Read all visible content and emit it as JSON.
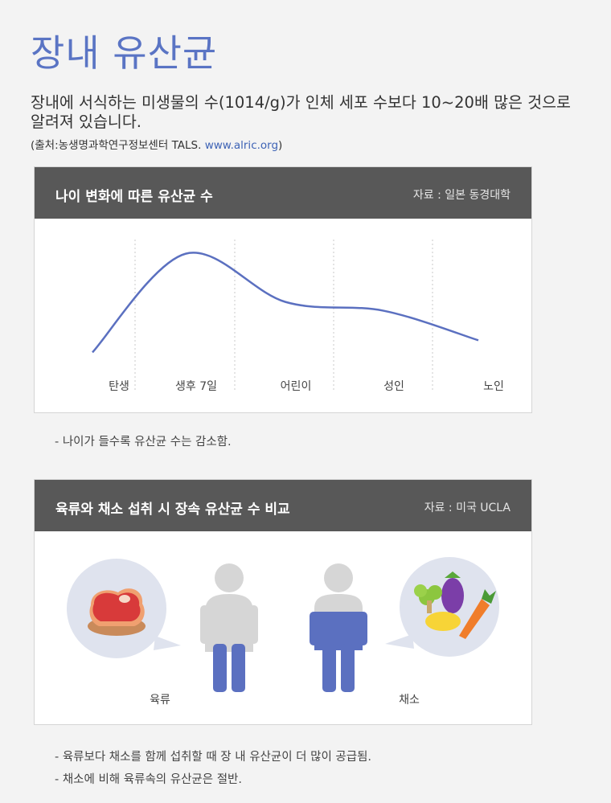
{
  "page": {
    "title": "장내 유산균",
    "intro": "장내에 서식하는 미생물의 수(1014/g)가 인체 세포 수보다 10~20배 많은 것으로 알려져 있습니다.",
    "source_prefix": "(출처:농생명과학연구정보센터 TALS. ",
    "source_link": "www.alric.org",
    "source_suffix": ")"
  },
  "card1": {
    "title": "나이 변화에 따른 유산균 수",
    "source": "자료 : 일본 동경대학",
    "note": "- 나이가 들수록 유산균 수는 감소함."
  },
  "card2": {
    "title": "육류와 채소 섭취 시 장속 유산균 수 비교",
    "source": "자료 : 미국 UCLA",
    "meat_label": "육류",
    "veg_label": "채소",
    "note1": "- 육류보다 채소를 함께 섭취할 때 장 내 유산균이 더 많이 공급됨.",
    "note2": "- 채소에 비해 육류속의 유산균은 절반."
  },
  "icons": {
    "meat": "meat-icon",
    "vegetables": "vegetables-icon",
    "person": "person-icon"
  },
  "colors": {
    "title_blue": "#5a74c4",
    "header_gray": "#585858",
    "curve_blue": "#5b70c0",
    "figure_gray": "#d6d6d6"
  },
  "chart_data": {
    "type": "line",
    "categories": [
      "탄생",
      "생후 7일",
      "어린이",
      "성인",
      "노인"
    ],
    "series": [
      {
        "values": [
          1,
          10,
          5.6,
          4.8,
          2.1
        ]
      }
    ],
    "ylabel": "",
    "xlabel": "",
    "grid": "vertical dotted separators",
    "legend": "none"
  }
}
